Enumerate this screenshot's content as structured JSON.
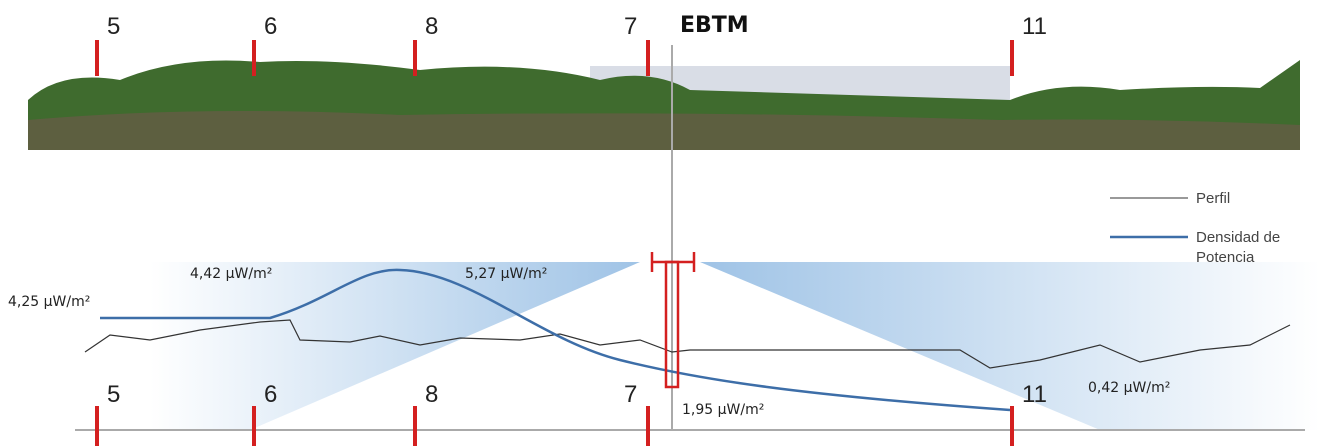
{
  "top_markers": [
    "5",
    "6",
    "8",
    "7",
    "11"
  ],
  "station": "EBTM",
  "bottom_markers": [
    "5",
    "6",
    "8",
    "7",
    "11"
  ],
  "density_labels": [
    "4,25 µW/m²",
    "4,42 µW/m²",
    "5,27 µW/m²",
    "1,95 µW/m²",
    "0,42 µW/m²"
  ],
  "legend": {
    "profile": "Perfil",
    "density": [
      "Densidad de",
      "Potencia"
    ]
  }
}
